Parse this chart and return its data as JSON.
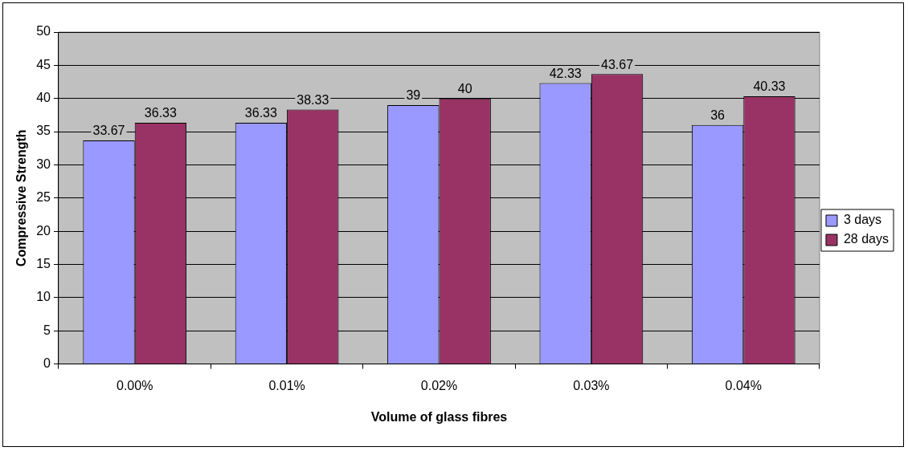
{
  "chart_data": {
    "type": "bar",
    "xlabel": "Volume of glass fibres",
    "ylabel": "Compressive Strength",
    "categories": [
      "0.00%",
      "0.01%",
      "0.02%",
      "0.03%",
      "0.04%"
    ],
    "series": [
      {
        "name": "3 days",
        "color": "#9999ff",
        "values": [
          33.67,
          36.33,
          39,
          42.33,
          36
        ]
      },
      {
        "name": "28 days",
        "color": "#993366",
        "values": [
          36.33,
          38.33,
          40,
          43.67,
          40.33
        ]
      }
    ],
    "ylim": [
      0,
      50
    ],
    "yticks": [
      0,
      5,
      10,
      15,
      20,
      25,
      30,
      35,
      40,
      45,
      50
    ],
    "grid": "y",
    "legend": "right",
    "data_labels": true
  }
}
